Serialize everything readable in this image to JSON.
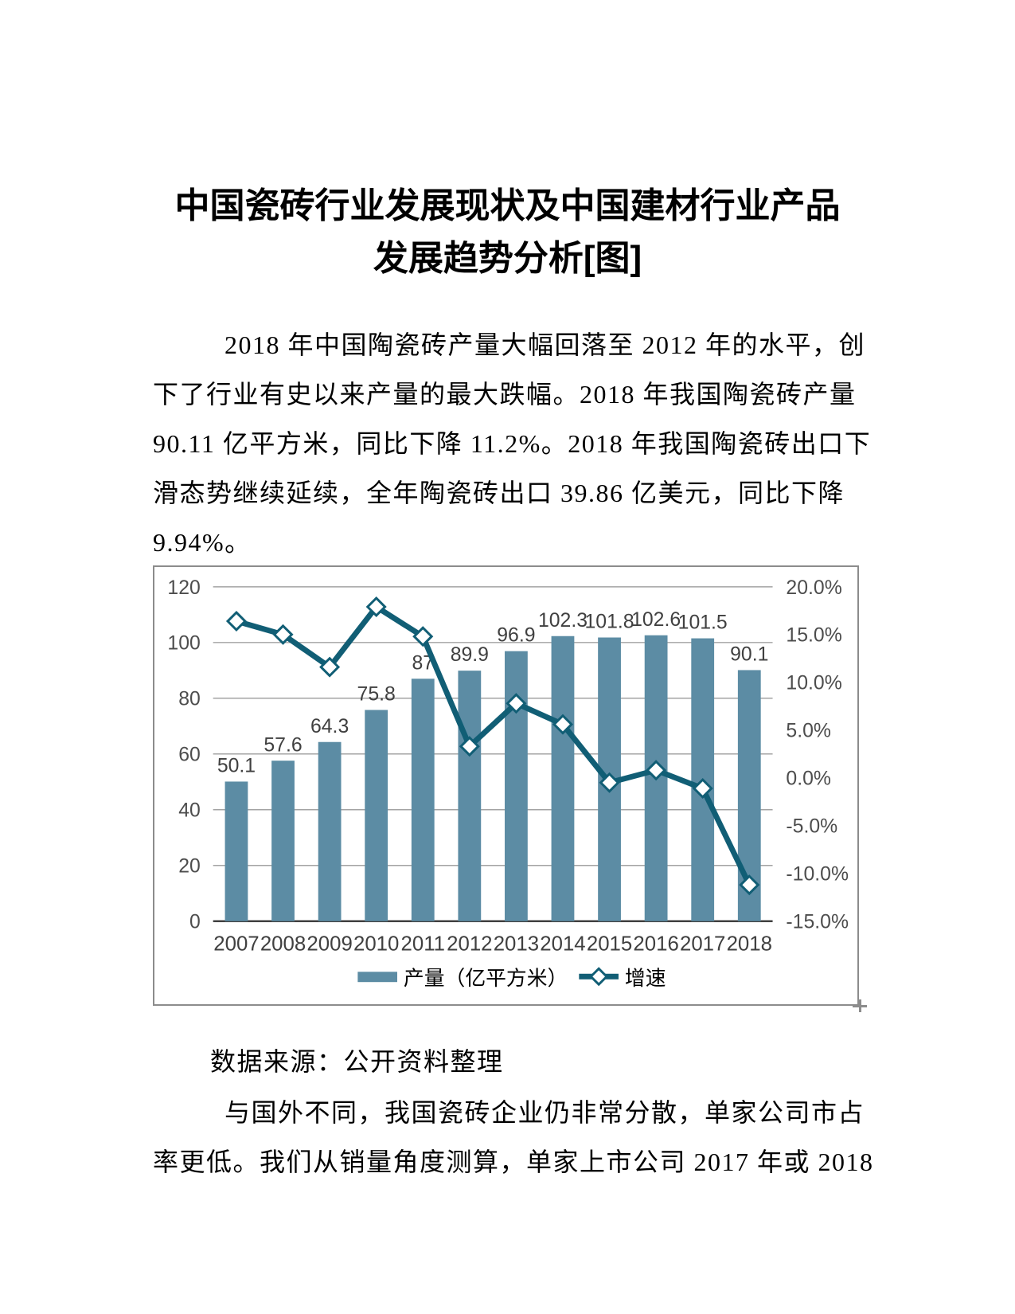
{
  "title": {
    "line1": "中国瓷砖行业发展现状及中国建材行业产品",
    "line2": "发展趋势分析[图]"
  },
  "paragraph1": {
    "lines": [
      "2018 年中国陶瓷砖产量大幅回落至 2012 年的水平，创",
      "下了行业有史以来产量的最大跌幅。2018 年我国陶瓷砖产量",
      "90.11 亿平方米，同比下降 11.2%。2018 年我国陶瓷砖出口下",
      "滑态势继续延续，全年陶瓷砖出口 39.86 亿美元，同比下降",
      "9.94%。"
    ]
  },
  "source_note": {
    "lines": [
      "数据来源：公开资料整理"
    ]
  },
  "paragraph2": {
    "lines": [
      "与国外不同，我国瓷砖企业仍非常分散，单家公司市占",
      "率更低。我们从销量角度测算，单家上市公司 2017 年或 2018"
    ]
  },
  "chart_data": {
    "type": "bar+line combo",
    "categories": [
      "2007",
      "2008",
      "2009",
      "2010",
      "2011",
      "2012",
      "2013",
      "2014",
      "2015",
      "2016",
      "2017",
      "2018"
    ],
    "series": [
      {
        "name": "产量（亿平方米）",
        "type": "bar",
        "axis": "left",
        "values": [
          50.1,
          57.6,
          64.3,
          75.8,
          87,
          89.9,
          96.9,
          102.3,
          101.8,
          102.6,
          101.5,
          90.1
        ],
        "labels": [
          "50.1",
          "57.6",
          "64.3",
          "75.8",
          "87",
          "89.9",
          "96.9",
          "102.3",
          "101.8",
          "102.6",
          "101.5",
          "90.1"
        ],
        "color": "#5c8ca4"
      },
      {
        "name": "增速",
        "type": "line",
        "axis": "right",
        "unit": "%",
        "values": [
          16.4,
          15.0,
          11.6,
          17.9,
          14.8,
          3.3,
          7.8,
          5.6,
          -0.5,
          0.8,
          -1.1,
          -11.2
        ],
        "color": "#115e75",
        "marker": "diamond",
        "marker_fill": "#ffffff"
      }
    ],
    "left_axis": {
      "min": 0,
      "max": 120,
      "ticks": [
        120,
        100,
        80,
        60,
        40,
        20,
        0
      ]
    },
    "right_axis": {
      "min": -15,
      "max": 20,
      "tick_labels": [
        "20.0%",
        "15.0%",
        "10.0%",
        "5.0%",
        "0.0%",
        "-5.0%",
        "-10.0%",
        "-15.0%"
      ]
    },
    "grid": true,
    "legend_position": "bottom",
    "colors": {
      "gridline": "#a3a3a3",
      "axis_line": "#404040",
      "tick_text": "#4d4d4d",
      "label_text": "#404040",
      "border": "#8c8c8c"
    }
  }
}
